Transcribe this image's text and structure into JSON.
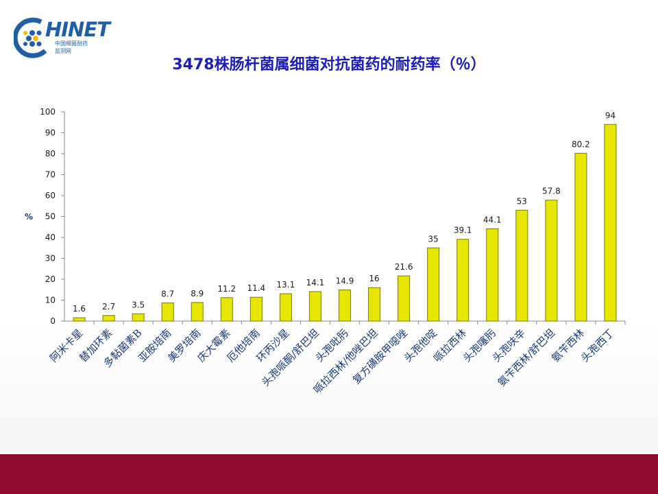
{
  "logo": {
    "word": "HINET",
    "sub_line1": "中国细菌耐药",
    "sub_line2": "监测网",
    "icon_name": "chinet-globe-logo"
  },
  "title": "3478株肠杆菌属细菌对抗菌药的耐药率（％）",
  "colors": {
    "title": "#1c1cb8",
    "bar_fill": "#e6e600",
    "bar_stroke": "#7a7a00",
    "footer": "#8c0b2c",
    "logo": "#1f5fa6",
    "axis_text": "#1a1a1a",
    "label_blue": "#1a3a78"
  },
  "chart_data": {
    "type": "bar",
    "title": "3478株肠杆菌属细菌对抗菌药的耐药率（％）",
    "xlabel": "",
    "ylabel": "%",
    "ylim": [
      0,
      100
    ],
    "yticks": [
      0,
      10,
      20,
      30,
      40,
      50,
      60,
      70,
      80,
      90,
      100
    ],
    "grid": false,
    "legend": "none",
    "categories": [
      "阿米卡星",
      "替加环素",
      "多黏菌素B",
      "亚胺培南",
      "美罗培南",
      "庆大霉素",
      "厄他培南",
      "环丙沙星",
      "头孢哌酮/舒巴坦",
      "头孢吡肟",
      "哌拉西林/他唑巴坦",
      "复方磺胺甲噁唑",
      "头孢他啶",
      "哌拉西林",
      "头孢噻肟",
      "头孢呋辛",
      "氨苄西林/舒巴坦",
      "氨苄西林",
      "头孢西丁"
    ],
    "values": [
      1.6,
      2.7,
      3.5,
      8.7,
      8.9,
      11.2,
      11.4,
      13.1,
      14.1,
      14.9,
      16,
      21.6,
      35,
      39.1,
      44.1,
      53,
      57.8,
      80.2,
      94
    ],
    "data_labels": [
      "1.6",
      "2.7",
      "3.5",
      "8.7",
      "8.9",
      "11.2",
      "11.4",
      "13.1",
      "14.1",
      "14.9",
      "16",
      "21.6",
      "35",
      "39.1",
      "44.1",
      "53",
      "57.8",
      "80.2",
      "94"
    ]
  }
}
